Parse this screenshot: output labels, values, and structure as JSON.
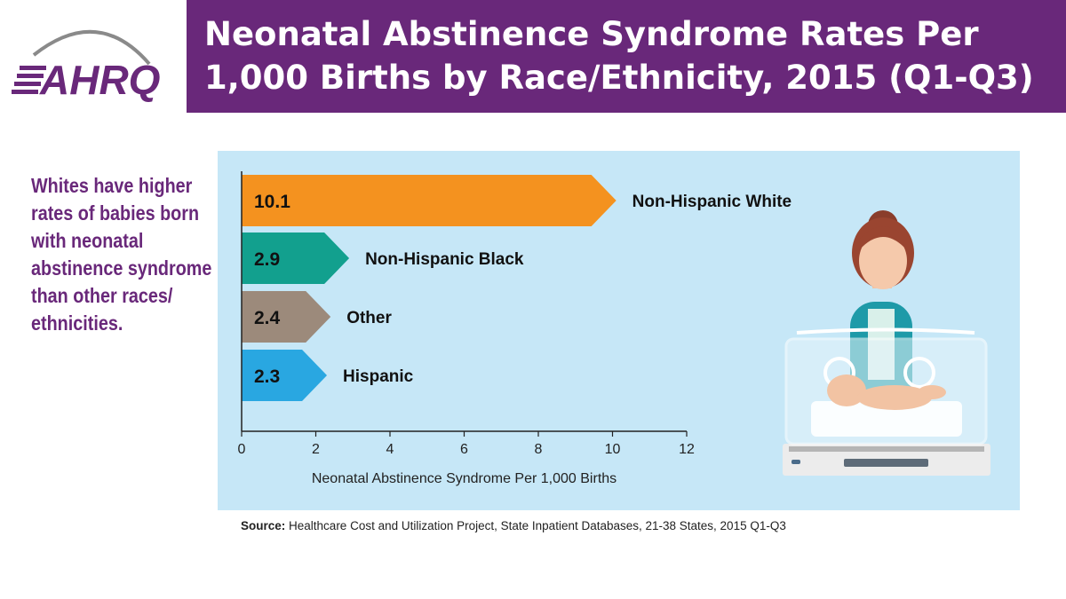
{
  "header": {
    "logo_text": "AHRQ",
    "title": "Neonatal Abstinence Syndrome Rates Per 1,000 Births by Race/Ethnicity, 2015 (Q1-Q3)"
  },
  "side_text": "Whites have higher rates of babies born with neonatal abstinence syndrome than other races/ ethnicities.",
  "source": {
    "label": "Source:",
    "text": "Healthcare Cost and Utilization Project, State Inpatient Databases, 21-38 States, 2015 Q1-Q3"
  },
  "chart_data": {
    "type": "bar",
    "orientation": "horizontal",
    "categories": [
      "Non-Hispanic White",
      "Non-Hispanic Black",
      "Other",
      "Hispanic"
    ],
    "values": [
      10.1,
      2.9,
      2.4,
      2.3
    ],
    "value_labels": [
      "10.1",
      "2.9",
      "2.4",
      "2.3"
    ],
    "colors": [
      "#f4921f",
      "#12a08e",
      "#9c8a7b",
      "#29a7e1"
    ],
    "xlabel": "Neonatal Abstinence Syndrome Per 1,000 Births",
    "xlim": [
      0,
      12
    ],
    "xticks": [
      "0",
      "2",
      "4",
      "6",
      "8",
      "10",
      "12"
    ],
    "grid": false,
    "legend": "none"
  }
}
